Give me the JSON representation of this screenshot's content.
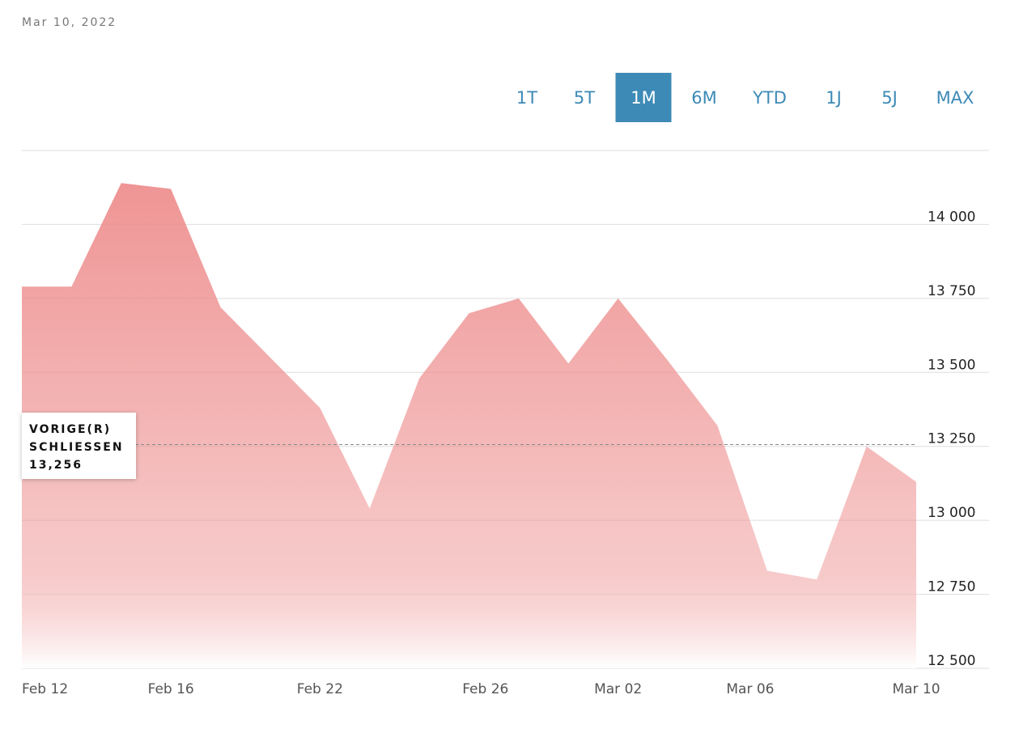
{
  "date": "Mar 10, 2022",
  "ranges": [
    "1T",
    "5T",
    "1M",
    "6M",
    "YTD",
    "1J",
    "5J",
    "MAX"
  ],
  "active_range": "1M",
  "chart_data": {
    "type": "area",
    "x": [
      0,
      1,
      2,
      3,
      4,
      5,
      6,
      7,
      8,
      9,
      10,
      11,
      12,
      13,
      14,
      15,
      16,
      17,
      18
    ],
    "xticks": [
      {
        "value": 0,
        "label": "Feb 12"
      },
      {
        "value": 3,
        "label": "Feb 16"
      },
      {
        "value": 6,
        "label": "Feb 22"
      },
      {
        "value": 9.33,
        "label": "Feb 26"
      },
      {
        "value": 12,
        "label": "Mar 02"
      },
      {
        "value": 14.66,
        "label": "Mar 06"
      },
      {
        "value": 18,
        "label": "Mar 10"
      }
    ],
    "values": [
      13790,
      13790,
      14140,
      14120,
      13720,
      13550,
      13380,
      13040,
      13480,
      13700,
      13750,
      13530,
      13750,
      13540,
      13320,
      12830,
      12800,
      13250,
      13130
    ],
    "color": "#ee8f8f",
    "ylim": [
      12500,
      14250
    ],
    "yticks": [
      {
        "value": 12500,
        "label": "12 500"
      },
      {
        "value": 12750,
        "label": "12 750"
      },
      {
        "value": 13000,
        "label": "13 000"
      },
      {
        "value": 13250,
        "label": "13 250"
      },
      {
        "value": 13500,
        "label": "13 500"
      },
      {
        "value": 13750,
        "label": "13 750"
      },
      {
        "value": 14000,
        "label": "14 000"
      }
    ],
    "grid": true,
    "reference": {
      "label": [
        "VORIGE(R)",
        "SCHLIESSEN"
      ],
      "value": 13256,
      "value_label": "13,256"
    }
  }
}
